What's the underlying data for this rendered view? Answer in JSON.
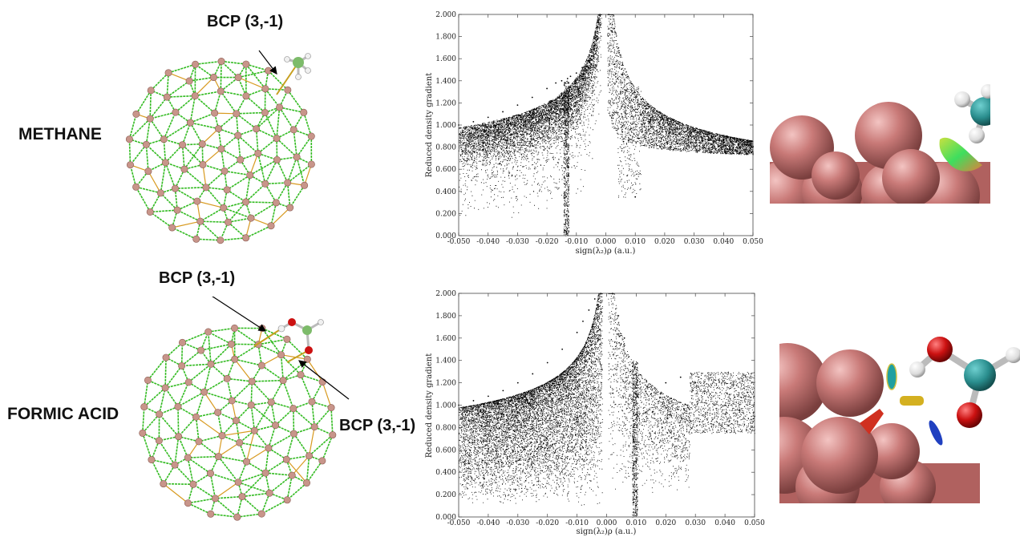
{
  "labels": {
    "row1": "METHANE",
    "row2": "FORMIC ACID",
    "bcp_top": "BCP (3,-1)",
    "bcp_mid1": "BCP (3,-1)",
    "bcp_mid2": "BCP (3,-1)"
  },
  "colors": {
    "cluster_bond": "#33bb22",
    "cluster_bond_alt": "#d89a20",
    "cluster_atom": "#c8958a",
    "sphere": "#c97a78",
    "carbon": "#2a8e8e",
    "hydrogen": "#e8e8e8",
    "oxygen": "#cc1111",
    "points": "#000000"
  },
  "chart_data": [
    {
      "type": "scatter",
      "title": "",
      "xlabel": "sign(λ₂)ρ (a.u.)",
      "ylabel": "Reduced density gradient",
      "xlim": [
        -0.05,
        0.05
      ],
      "ylim": [
        0,
        2.0
      ],
      "x_ticks": [
        "-0.050",
        "-0.040",
        "-0.030",
        "-0.020",
        "-0.010",
        "0.000",
        "0.010",
        "0.020",
        "0.030",
        "0.040",
        "0.050"
      ],
      "y_ticks": [
        "0.000",
        "0.200",
        "0.400",
        "0.600",
        "0.800",
        "1.000",
        "1.200",
        "1.400",
        "1.600",
        "1.800",
        "2.000"
      ],
      "grid": false,
      "series": [
        {
          "x": [
            -0.05,
            -0.045,
            -0.04,
            -0.035,
            -0.03,
            -0.025,
            -0.02,
            -0.017,
            -0.015,
            -0.014,
            -0.013,
            -0.012,
            -0.01,
            -0.008,
            -0.006,
            -0.004,
            -0.003,
            -0.002,
            0.001,
            0.002,
            0.003,
            0.004,
            0.005,
            0.006,
            0.008,
            0.01,
            0.012,
            0.015,
            0.02,
            0.025,
            0.03,
            0.035,
            0.04,
            0.045,
            0.05
          ],
          "y": [
            1.0,
            1.03,
            1.07,
            1.12,
            1.18,
            1.25,
            1.33,
            1.38,
            1.4,
            0.05,
            1.42,
            1.44,
            1.47,
            1.52,
            1.58,
            1.68,
            1.8,
            2.0,
            2.0,
            1.85,
            1.55,
            1.42,
            1.3,
            0.85,
            1.2,
            0.35,
            1.1,
            1.05,
            0.98,
            0.92,
            0.88,
            0.86,
            0.84,
            0.82,
            0.8
          ]
        }
      ]
    },
    {
      "type": "scatter",
      "title": "",
      "xlabel": "sign(λ₂)ρ (a.u.)",
      "ylabel": "Reduced density gradient",
      "xlim": [
        -0.05,
        0.05
      ],
      "ylim": [
        0,
        2.0
      ],
      "x_ticks": [
        "-0.050",
        "-0.040",
        "-0.030",
        "-0.020",
        "-0.010",
        "0.000",
        "0.010",
        "0.020",
        "0.030",
        "0.040",
        "0.050"
      ],
      "y_ticks": [
        "0.000",
        "0.200",
        "0.400",
        "0.600",
        "0.800",
        "1.000",
        "1.200",
        "1.400",
        "1.600",
        "1.800",
        "2.000"
      ],
      "grid": false,
      "series": [
        {
          "x": [
            -0.05,
            -0.045,
            -0.04,
            -0.035,
            -0.03,
            -0.025,
            -0.02,
            -0.015,
            -0.01,
            -0.008,
            -0.006,
            -0.004,
            -0.002,
            0.002,
            0.004,
            0.006,
            0.008,
            0.01,
            0.015,
            0.02,
            0.025,
            0.03,
            0.035,
            0.04,
            0.045,
            0.05
          ],
          "y": [
            1.0,
            1.04,
            1.08,
            1.13,
            1.2,
            1.28,
            1.38,
            1.5,
            1.65,
            1.75,
            1.85,
            1.95,
            2.0,
            2.0,
            1.8,
            1.6,
            1.3,
            0.1,
            1.1,
            1.2,
            1.25,
            1.2,
            1.1,
            1.0,
            0.95,
            0.9
          ]
        }
      ]
    }
  ]
}
